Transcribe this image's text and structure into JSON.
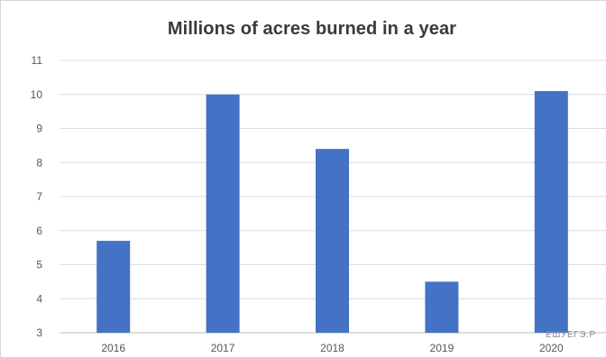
{
  "chart_data": {
    "type": "bar",
    "title": "Millions of acres burned in a year",
    "xlabel": "",
    "ylabel": "",
    "categories": [
      "2016",
      "2017",
      "2018",
      "2019",
      "2020"
    ],
    "values": [
      5.7,
      10.0,
      8.4,
      4.5,
      10.1
    ],
    "ylim": [
      3,
      11
    ],
    "yticks": [
      3,
      4,
      5,
      6,
      7,
      8,
      9,
      10,
      11
    ],
    "grid": true,
    "legend": "none",
    "bar_color": "#4472c4",
    "grid_color": "#dcdcdc",
    "axis_color": "#bdbdbd"
  },
  "watermark": {
    "text": "ЕШУЕГЭ.Р"
  }
}
